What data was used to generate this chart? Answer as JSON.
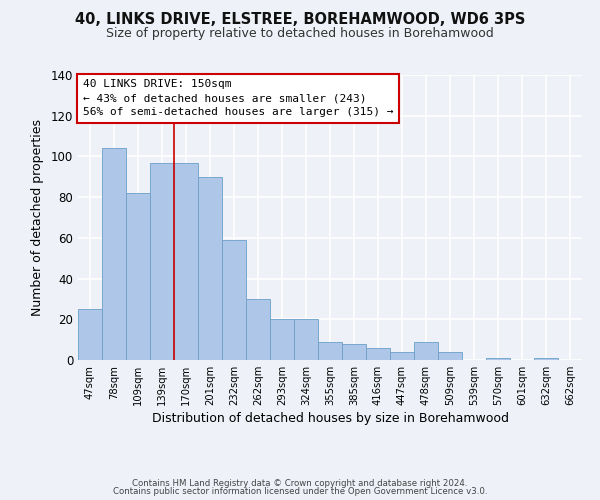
{
  "title": "40, LINKS DRIVE, ELSTREE, BOREHAMWOOD, WD6 3PS",
  "subtitle": "Size of property relative to detached houses in Borehamwood",
  "xlabel": "Distribution of detached houses by size in Borehamwood",
  "ylabel": "Number of detached properties",
  "bar_labels": [
    "47sqm",
    "78sqm",
    "109sqm",
    "139sqm",
    "170sqm",
    "201sqm",
    "232sqm",
    "262sqm",
    "293sqm",
    "324sqm",
    "355sqm",
    "385sqm",
    "416sqm",
    "447sqm",
    "478sqm",
    "509sqm",
    "539sqm",
    "570sqm",
    "601sqm",
    "632sqm",
    "662sqm"
  ],
  "bar_heights": [
    25,
    104,
    82,
    97,
    97,
    90,
    59,
    30,
    20,
    20,
    9,
    8,
    6,
    4,
    9,
    4,
    0,
    1,
    0,
    1,
    0
  ],
  "bar_color": "#aec6e8",
  "bar_edge_color": "#6a9fc8",
  "ylim": [
    0,
    140
  ],
  "yticks": [
    0,
    20,
    40,
    60,
    80,
    100,
    120,
    140
  ],
  "vline_color": "#cc0000",
  "annotation_line1": "40 LINKS DRIVE: 150sqm",
  "annotation_line2": "← 43% of detached houses are smaller (243)",
  "annotation_line3": "56% of semi-detached houses are larger (315) →",
  "annotation_box_color": "#ffffff",
  "annotation_box_edge": "#cc0000",
  "background_color": "#eef2f8",
  "grid_color": "#ffffff",
  "footer_line1": "Contains HM Land Registry data © Crown copyright and database right 2024.",
  "footer_line2": "Contains public sector information licensed under the Open Government Licence v3.0."
}
